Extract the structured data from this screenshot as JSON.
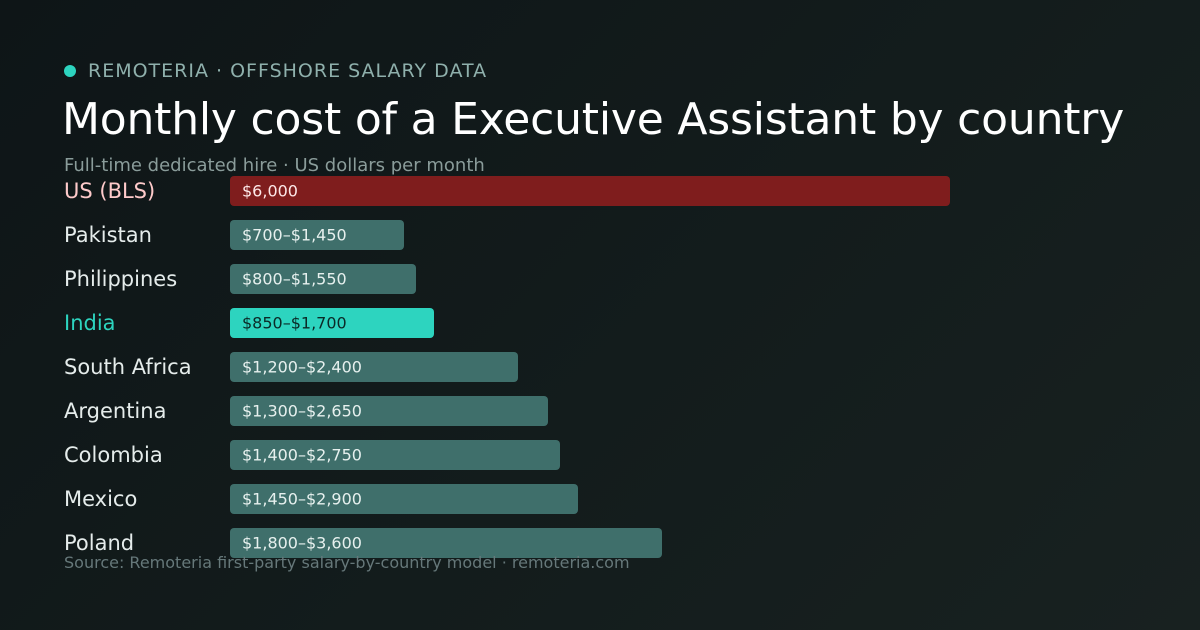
{
  "header": {
    "brand": "REMOTERIA · OFFSHORE SALARY DATA",
    "title": "Monthly cost of a Executive Assistant by country",
    "subtitle": "Full-time dedicated hire · US dollars per month"
  },
  "footer": {
    "source": "Source: Remoteria first-party salary-by-country model · remoteria.com"
  },
  "colors": {
    "accent": "#2dd4bf",
    "reference_bar": "#7f1d1d",
    "reference_label": "#fecaca",
    "default_bar": "#3f6f6b",
    "label": "#e5eceb",
    "highlight_label": "#2dd4bf",
    "highlight_value_text": "#0b2a27"
  },
  "chart_data": {
    "type": "bar",
    "orientation": "horizontal",
    "categories": [
      "US (BLS)",
      "Pakistan",
      "Philippines",
      "India",
      "South Africa",
      "Argentina",
      "Colombia",
      "Mexico",
      "Poland"
    ],
    "series": [
      {
        "low": [
          6000,
          700,
          800,
          850,
          1200,
          1300,
          1400,
          1450,
          1800
        ],
        "high": [
          6000,
          1450,
          1550,
          1700,
          2400,
          2650,
          2750,
          2900,
          3600
        ],
        "value_labels": [
          "$6,000",
          "$700–$1,450",
          "$800–$1,550",
          "$850–$1,700",
          "$1,200–$2,400",
          "$1,300–$2,650",
          "$1,400–$2,750",
          "$1,450–$2,900",
          "$1,800–$3,600"
        ]
      }
    ],
    "reference_category": "US (BLS)",
    "highlight_category": "India",
    "xlim": [
      0,
      6000
    ],
    "grid": false,
    "legend": "none"
  }
}
